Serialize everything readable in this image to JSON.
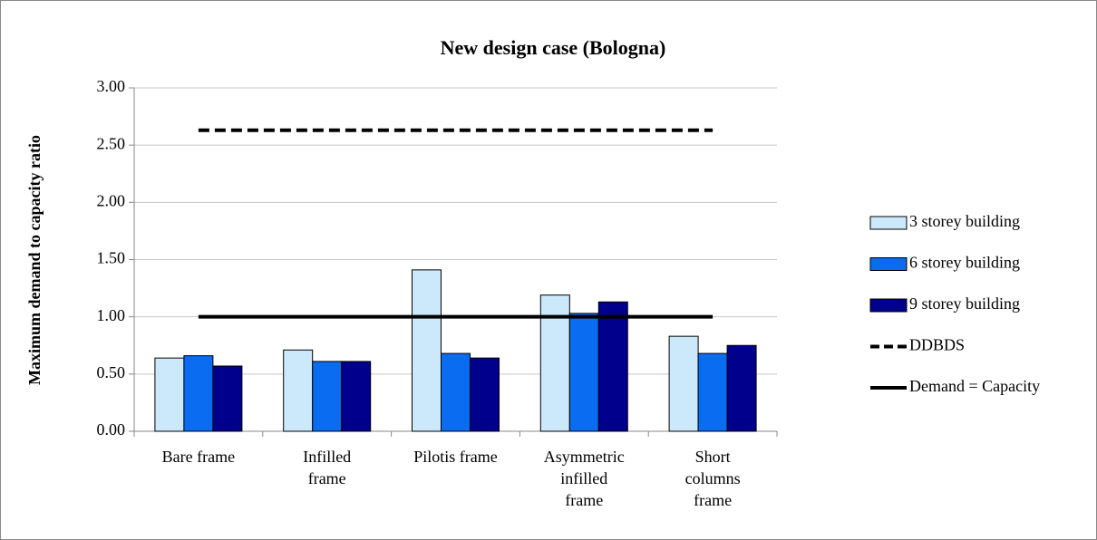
{
  "chart_data": {
    "type": "bar",
    "title": "New design case (Bologna)",
    "y_label": "Maximum demand to capacity ratio",
    "categories": [
      "Bare frame",
      "Infilled\nframe",
      "Pilotis frame",
      "Asymmetric\ninfilled\nframe",
      "Short\ncolumns\nframe"
    ],
    "series": [
      {
        "name": "3 storey building",
        "color": "#cce9fb",
        "values": [
          0.64,
          0.71,
          1.41,
          1.19,
          0.83
        ]
      },
      {
        "name": "6 storey building",
        "color": "#0a6cf0",
        "values": [
          0.66,
          0.61,
          0.68,
          1.03,
          0.68
        ]
      },
      {
        "name": "9 storey building",
        "color": "#00008c",
        "values": [
          0.57,
          0.61,
          0.64,
          1.13,
          0.75
        ]
      },
      {
        "name": "DDBDS",
        "type": "line",
        "dash": true,
        "color": "#000000",
        "values": [
          2.63,
          2.63,
          2.63,
          2.63,
          2.63
        ]
      },
      {
        "name": "Demand = Capacity",
        "type": "line",
        "dash": false,
        "color": "#000000",
        "values": [
          1.0,
          1.0,
          1.0,
          1.0,
          1.0
        ]
      }
    ],
    "ylim": [
      0,
      3
    ],
    "yticks": [
      {
        "value": 0,
        "label": "0.00"
      },
      {
        "value": 0.5,
        "label": "0.50"
      },
      {
        "value": 1,
        "label": "1.00"
      },
      {
        "value": 1.5,
        "label": "1.50"
      },
      {
        "value": 2,
        "label": "2.00"
      },
      {
        "value": 2.5,
        "label": "2.50"
      },
      {
        "value": 3,
        "label": "3.00"
      }
    ],
    "grid": true,
    "legend": "right"
  }
}
